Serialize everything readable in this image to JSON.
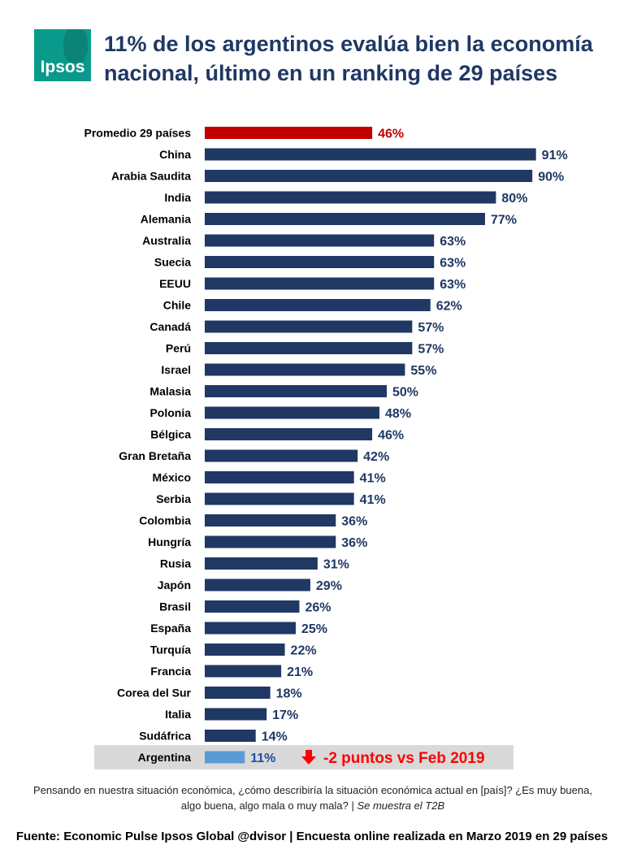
{
  "logo": {
    "text": "Ipsos"
  },
  "title": "11% de los argentinos evalúa bien la economía nacional, último en un ranking de 29 países",
  "colors": {
    "average": "#c00000",
    "bar": "#1f3864",
    "highlight": "#5b9bd5",
    "highlight_bg": "#d9d9d9",
    "highlight_label": "#1f4fa0",
    "change": "#ff0000"
  },
  "chart_data": {
    "type": "bar",
    "orientation": "horizontal",
    "categories": [
      "Promedio 29 países",
      "China",
      "Arabia Saudita",
      "India",
      "Alemania",
      "Australia",
      "Suecia",
      "EEUU",
      "Chile",
      "Canadá",
      "Perú",
      "Israel",
      "Malasia",
      "Polonia",
      "Bélgica",
      "Gran Bretaña",
      "México",
      "Serbia",
      "Colombia",
      "Hungría",
      "Rusia",
      "Japón",
      "Brasil",
      "España",
      "Turquía",
      "Francia",
      "Corea del Sur",
      "Italia",
      "Sudáfrica",
      "Argentina"
    ],
    "values": [
      46,
      91,
      90,
      80,
      77,
      63,
      63,
      63,
      62,
      57,
      57,
      55,
      50,
      48,
      46,
      42,
      41,
      41,
      36,
      36,
      31,
      29,
      26,
      25,
      22,
      21,
      18,
      17,
      14,
      11
    ],
    "labels": [
      "46%",
      "91%",
      "90%",
      "80%",
      "77%",
      "63%",
      "63%",
      "63%",
      "62%",
      "57%",
      "57%",
      "55%",
      "50%",
      "48%",
      "46%",
      "42%",
      "41%",
      "41%",
      "36%",
      "36%",
      "31%",
      "29%",
      "26%",
      "25%",
      "22%",
      "21%",
      "18%",
      "17%",
      "14%",
      "11%"
    ],
    "average_category": "Promedio 29 países",
    "highlight_category": "Argentina",
    "annotation": "-2 puntos vs Feb 2019",
    "xlim": [
      0,
      100
    ],
    "title": "",
    "xlabel": "",
    "ylabel": ""
  },
  "note": {
    "text": "Pensando  en nuestra situación económica, ¿cómo describiría la situación económica actual en [país]? ¿Es muy buena, algo buena, algo mala o muy mala? | ",
    "italic": "Se muestra el T2B"
  },
  "source": "Fuente: Economic Pulse Ipsos Global @dvisor | Encuesta online realizada en Marzo 2019 en 29 países"
}
